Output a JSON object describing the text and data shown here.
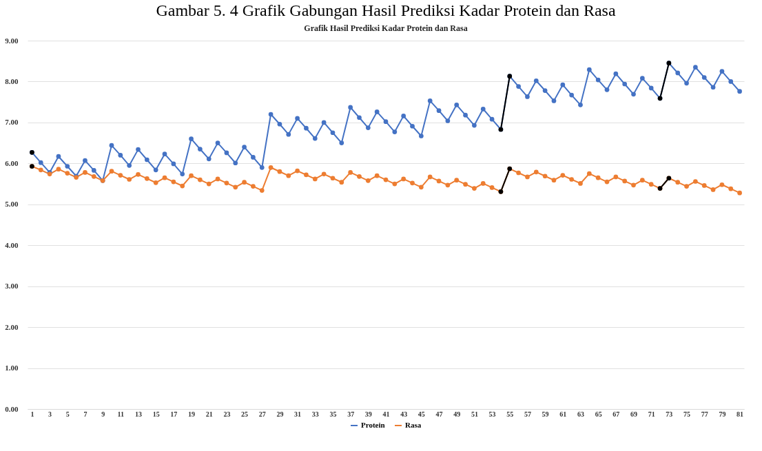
{
  "chart_data": {
    "type": "line",
    "title": "Gambar 5. 4 Grafik Gabungan Hasil Prediksi Kadar Protein dan Rasa",
    "subtitle": "Grafik Hasil Prediksi Kadar Protein dan Rasa",
    "x": [
      1,
      2,
      3,
      4,
      5,
      6,
      7,
      8,
      9,
      10,
      11,
      12,
      13,
      14,
      15,
      16,
      17,
      18,
      19,
      20,
      21,
      22,
      23,
      24,
      25,
      26,
      27,
      28,
      29,
      30,
      31,
      32,
      33,
      34,
      35,
      36,
      37,
      38,
      39,
      40,
      41,
      42,
      43,
      44,
      45,
      46,
      47,
      48,
      49,
      50,
      51,
      52,
      53,
      54,
      55,
      56,
      57,
      58,
      59,
      60,
      61,
      62,
      63,
      64,
      65,
      66,
      67,
      68,
      69,
      70,
      71,
      72,
      73,
      74,
      75,
      76,
      77,
      78,
      79,
      80,
      81
    ],
    "xlim": [
      0.5,
      81.5
    ],
    "xticks": [
      1,
      3,
      5,
      7,
      9,
      11,
      13,
      15,
      17,
      19,
      21,
      23,
      25,
      27,
      29,
      31,
      33,
      35,
      37,
      39,
      41,
      43,
      45,
      47,
      49,
      51,
      53,
      55,
      57,
      59,
      61,
      63,
      65,
      67,
      69,
      71,
      73,
      75,
      77,
      79,
      81
    ],
    "series": [
      {
        "name": "Protein",
        "color": "#4472c4",
        "values": [
          6.27,
          6.02,
          5.78,
          6.17,
          5.93,
          5.69,
          6.07,
          5.83,
          5.58,
          6.44,
          6.2,
          5.95,
          6.34,
          6.09,
          5.84,
          6.23,
          5.99,
          5.74,
          6.6,
          6.35,
          6.11,
          6.5,
          6.26,
          6.01,
          6.4,
          6.15,
          5.9,
          7.2,
          6.96,
          6.71,
          7.1,
          6.86,
          6.61,
          7.0,
          6.75,
          6.5,
          7.37,
          7.12,
          6.87,
          7.26,
          7.02,
          6.77,
          7.16,
          6.91,
          6.67,
          7.53,
          7.29,
          7.04,
          7.43,
          7.18,
          6.93,
          7.33,
          7.08,
          6.83,
          8.13,
          7.88,
          7.63,
          8.02,
          7.78,
          7.53,
          7.92,
          7.67,
          7.43,
          8.29,
          8.04,
          7.8,
          8.19,
          7.94,
          7.69,
          8.08,
          7.84,
          7.59,
          8.45,
          8.21,
          7.96,
          8.35,
          8.1,
          7.86,
          8.25,
          8.0,
          7.76
        ]
      },
      {
        "name": "Rasa",
        "color": "#ed7d31",
        "values": [
          5.93,
          5.84,
          5.74,
          5.86,
          5.76,
          5.66,
          5.78,
          5.68,
          5.58,
          5.81,
          5.71,
          5.61,
          5.73,
          5.63,
          5.53,
          5.65,
          5.55,
          5.45,
          5.7,
          5.6,
          5.5,
          5.62,
          5.52,
          5.42,
          5.54,
          5.44,
          5.34,
          5.9,
          5.8,
          5.7,
          5.82,
          5.72,
          5.62,
          5.74,
          5.64,
          5.54,
          5.78,
          5.68,
          5.58,
          5.7,
          5.6,
          5.5,
          5.62,
          5.52,
          5.42,
          5.67,
          5.57,
          5.47,
          5.59,
          5.49,
          5.39,
          5.51,
          5.41,
          5.31,
          5.87,
          5.77,
          5.67,
          5.79,
          5.69,
          5.59,
          5.71,
          5.61,
          5.51,
          5.75,
          5.65,
          5.55,
          5.67,
          5.57,
          5.47,
          5.59,
          5.49,
          5.39,
          5.64,
          5.54,
          5.44,
          5.56,
          5.46,
          5.36,
          5.48,
          5.38,
          5.28
        ]
      },
      {
        "color": "#000000",
        "values": [
          6.27,
          null,
          null,
          null,
          null,
          null,
          null,
          null,
          null,
          null,
          null,
          null,
          null,
          null,
          null,
          null,
          null,
          null,
          null,
          null,
          null,
          null,
          null,
          null,
          null,
          null,
          null,
          null,
          null,
          null,
          null,
          null,
          null,
          null,
          null,
          null,
          null,
          null,
          null,
          null,
          null,
          null,
          null,
          null,
          null,
          null,
          null,
          null,
          null,
          null,
          null,
          null,
          null,
          6.83,
          8.13,
          null,
          null,
          null,
          null,
          null,
          null,
          null,
          null,
          null,
          null,
          null,
          null,
          null,
          null,
          null,
          null,
          7.59,
          8.45,
          null,
          null,
          null,
          null,
          null,
          null,
          null,
          null
        ]
      },
      {
        "color": "#000000",
        "values": [
          5.93,
          null,
          null,
          null,
          null,
          null,
          null,
          null,
          null,
          null,
          null,
          null,
          null,
          null,
          null,
          null,
          null,
          null,
          null,
          null,
          null,
          null,
          null,
          null,
          null,
          null,
          null,
          null,
          null,
          null,
          null,
          null,
          null,
          null,
          null,
          null,
          null,
          null,
          null,
          null,
          null,
          null,
          null,
          null,
          null,
          null,
          null,
          null,
          null,
          null,
          null,
          null,
          null,
          5.31,
          5.87,
          null,
          null,
          null,
          null,
          null,
          null,
          null,
          null,
          null,
          null,
          null,
          null,
          null,
          null,
          null,
          null,
          5.39,
          5.64,
          null,
          null,
          null,
          null,
          null,
          null,
          null,
          null
        ]
      }
    ],
    "ylim": [
      0,
      9
    ],
    "yticks": [
      {
        "value": 0,
        "label": "0.00"
      },
      {
        "value": 1,
        "label": "1.00"
      },
      {
        "value": 2,
        "label": "2.00"
      },
      {
        "value": 3,
        "label": "3.00"
      },
      {
        "value": 4,
        "label": "4.00"
      },
      {
        "value": 5,
        "label": "5.00"
      },
      {
        "value": 6,
        "label": "6.00"
      },
      {
        "value": 7,
        "label": "7.00"
      },
      {
        "value": 8,
        "label": "8.00"
      },
      {
        "value": 9,
        "label": "9.00"
      }
    ],
    "grid": "y",
    "legend": "bottom",
    "marker": "circle",
    "line_style": "solid"
  }
}
